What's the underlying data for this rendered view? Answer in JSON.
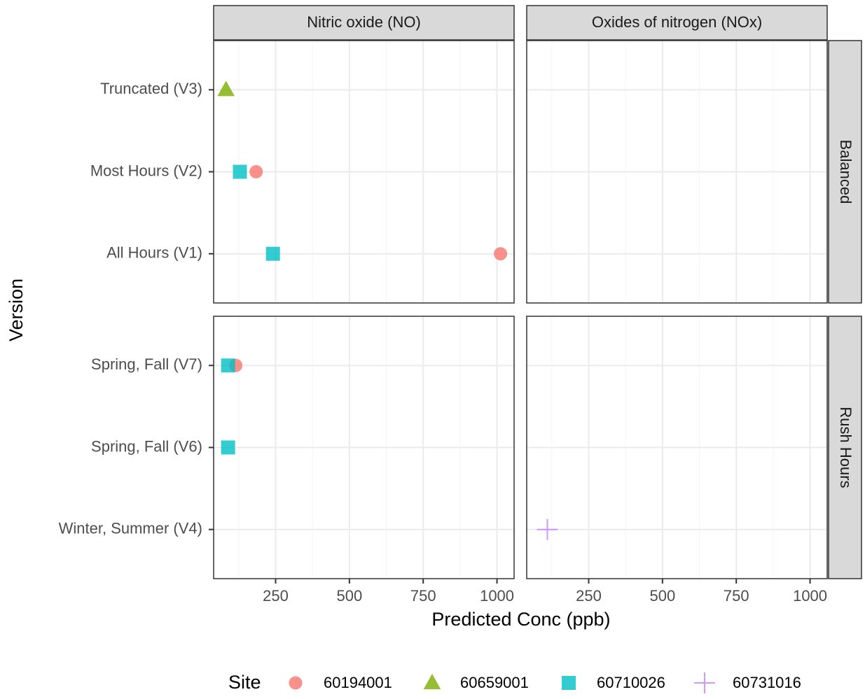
{
  "chart_data": {
    "type": "scatter",
    "xlabel": "Predicted Conc (ppb)",
    "ylabel": "Version",
    "legend_title": "Site",
    "legend_position": "bottom",
    "xlim": [
      40,
      1058
    ],
    "xticks": [
      250,
      500,
      750,
      1000
    ],
    "x_minor_grid": [
      125,
      375,
      625,
      875
    ],
    "grid": true,
    "facet_cols": [
      "Nitric oxide (NO)",
      "Oxides of nitrogen (NOx)"
    ],
    "facet_rows": [
      {
        "label": "Balanced",
        "categories": [
          "Truncated (V3)",
          "Most Hours (V2)",
          "All Hours (V1)"
        ]
      },
      {
        "label": "Rush Hours",
        "categories": [
          "Spring, Fall (V7)",
          "Spring, Fall (V6)",
          "Winter, Summer (V4)"
        ]
      }
    ],
    "series": [
      {
        "name": "60194001",
        "color": "#F8766D",
        "shape": "circle",
        "points": [
          {
            "facet_col": "Nitric oxide (NO)",
            "facet_row": "Balanced",
            "category": "Most Hours (V2)",
            "value": 184
          },
          {
            "facet_col": "Nitric oxide (NO)",
            "facet_row": "Balanced",
            "category": "All Hours (V1)",
            "value": 1012
          },
          {
            "facet_col": "Nitric oxide (NO)",
            "facet_row": "Rush Hours",
            "category": "Spring, Fall (V7)",
            "value": 115
          }
        ]
      },
      {
        "name": "60659001",
        "color": "#7CAE00",
        "shape": "triangle",
        "points": [
          {
            "facet_col": "Nitric oxide (NO)",
            "facet_row": "Balanced",
            "category": "Truncated (V3)",
            "value": 82
          }
        ]
      },
      {
        "name": "60710026",
        "color": "#00BFC4",
        "shape": "square",
        "points": [
          {
            "facet_col": "Nitric oxide (NO)",
            "facet_row": "Balanced",
            "category": "Most Hours (V2)",
            "value": 129
          },
          {
            "facet_col": "Nitric oxide (NO)",
            "facet_row": "Balanced",
            "category": "All Hours (V1)",
            "value": 241
          },
          {
            "facet_col": "Nitric oxide (NO)",
            "facet_row": "Rush Hours",
            "category": "Spring, Fall (V7)",
            "value": 89
          },
          {
            "facet_col": "Nitric oxide (NO)",
            "facet_row": "Rush Hours",
            "category": "Spring, Fall (V6)",
            "value": 89
          }
        ]
      },
      {
        "name": "60731016",
        "color": "#C77CFF",
        "shape": "plus",
        "points": [
          {
            "facet_col": "Oxides of nitrogen (NOx)",
            "facet_row": "Rush Hours",
            "category": "Winter, Summer (V4)",
            "value": 110
          }
        ]
      }
    ]
  }
}
